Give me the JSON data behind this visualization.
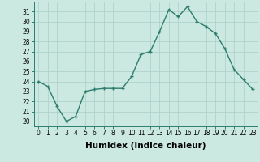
{
  "x": [
    0,
    1,
    2,
    3,
    4,
    5,
    6,
    7,
    8,
    9,
    10,
    11,
    12,
    13,
    14,
    15,
    16,
    17,
    18,
    19,
    20,
    21,
    22,
    23
  ],
  "y": [
    24.0,
    23.5,
    21.5,
    20.0,
    20.5,
    23.0,
    23.2,
    23.3,
    23.3,
    23.3,
    24.5,
    26.7,
    27.0,
    29.0,
    31.2,
    30.5,
    31.5,
    30.0,
    29.5,
    28.8,
    27.3,
    25.2,
    24.2,
    23.2
  ],
  "line_color": "#2e7d6e",
  "marker": "+",
  "marker_size": 3.5,
  "marker_lw": 1.0,
  "bg_color": "#cce9e1",
  "grid_color": "#aacec6",
  "xlabel": "Humidex (Indice chaleur)",
  "xlim": [
    -0.5,
    23.5
  ],
  "ylim": [
    19.5,
    32.0
  ],
  "yticks": [
    20,
    21,
    22,
    23,
    24,
    25,
    26,
    27,
    28,
    29,
    30,
    31
  ],
  "xticks": [
    0,
    1,
    2,
    3,
    4,
    5,
    6,
    7,
    8,
    9,
    10,
    11,
    12,
    13,
    14,
    15,
    16,
    17,
    18,
    19,
    20,
    21,
    22,
    23
  ],
  "tick_fontsize": 5.5,
  "label_fontsize": 7.5,
  "linewidth": 1.0
}
